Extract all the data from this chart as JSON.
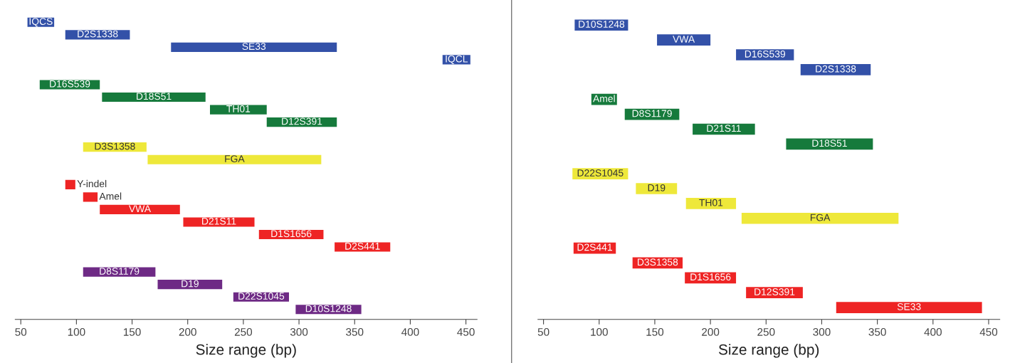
{
  "chart_data": [
    {
      "type": "bar",
      "orientation": "horizontal",
      "xlabel": "Size range (bp)",
      "xlim": [
        45,
        460
      ],
      "xticks": [
        50,
        100,
        150,
        200,
        250,
        300,
        350,
        400,
        450
      ],
      "tick_labels": "x",
      "grid": false,
      "categories": [
        "IQCS",
        "D2S1338",
        "SE33",
        "IQCL",
        null,
        "D16S539",
        "D18S51",
        "TH01",
        "D12S391",
        null,
        "D3S1358",
        "FGA",
        null,
        "Y-indel",
        "Amel",
        "VWA",
        "D21S11",
        "D1S1656",
        "D2S441",
        null,
        "D8S1179",
        "D19",
        "D22S1045",
        "D10S1248"
      ],
      "base": [
        56,
        90,
        185,
        429,
        null,
        67,
        123,
        220,
        271,
        null,
        106,
        164,
        null,
        90,
        106,
        121,
        196,
        264,
        332,
        null,
        106,
        173,
        241,
        297
      ],
      "values": [
        24,
        58,
        149,
        25,
        null,
        54,
        93,
        51,
        63,
        null,
        57,
        156,
        null,
        9,
        13,
        72,
        64,
        58,
        50,
        null,
        65,
        58,
        50,
        59
      ],
      "colors": [
        "#3351a8",
        "#3351a8",
        "#3351a8",
        "#3351a8",
        null,
        "#167a3c",
        "#167a3c",
        "#167a3c",
        "#167a3c",
        null,
        "#eee83a",
        "#eee83a",
        null,
        "#ee2424",
        "#ee2424",
        "#ee2424",
        "#ee2424",
        "#ee2424",
        "#ee2424",
        null,
        "#6e2a85",
        "#6e2a85",
        "#6e2a85",
        "#6e2a85"
      ]
    },
    {
      "type": "bar",
      "orientation": "horizontal",
      "xlabel": "Size range (bp)",
      "xlim": [
        45,
        460
      ],
      "xticks": [
        50,
        100,
        150,
        200,
        250,
        300,
        350,
        400,
        450
      ],
      "tick_labels": "x",
      "grid": false,
      "categories": [
        "D10S1248",
        "VWA",
        "D16S539",
        "D2S1338",
        null,
        "Amel",
        "D8S1179",
        "D21S11",
        "D18S51",
        null,
        "D22S1045",
        "D19",
        "TH01",
        "FGA",
        null,
        "D2S441",
        "D3S1358",
        "D1S1656",
        "D12S391",
        "SE33"
      ],
      "base": [
        78,
        152,
        223,
        281,
        null,
        93,
        123,
        184,
        268,
        null,
        76,
        133,
        178,
        228,
        null,
        77,
        130,
        177,
        232,
        313
      ],
      "values": [
        48,
        48,
        52,
        63,
        null,
        23,
        49,
        56,
        78,
        null,
        50,
        37,
        45,
        141,
        null,
        38,
        45,
        46,
        51,
        131
      ],
      "colors": [
        "#3351a8",
        "#3351a8",
        "#3351a8",
        "#3351a8",
        null,
        "#167a3c",
        "#167a3c",
        "#167a3c",
        "#167a3c",
        null,
        "#eee83a",
        "#eee83a",
        "#eee83a",
        "#eee83a",
        null,
        "#ee2424",
        "#ee2424",
        "#ee2424",
        "#ee2424",
        "#ee2424"
      ]
    }
  ]
}
